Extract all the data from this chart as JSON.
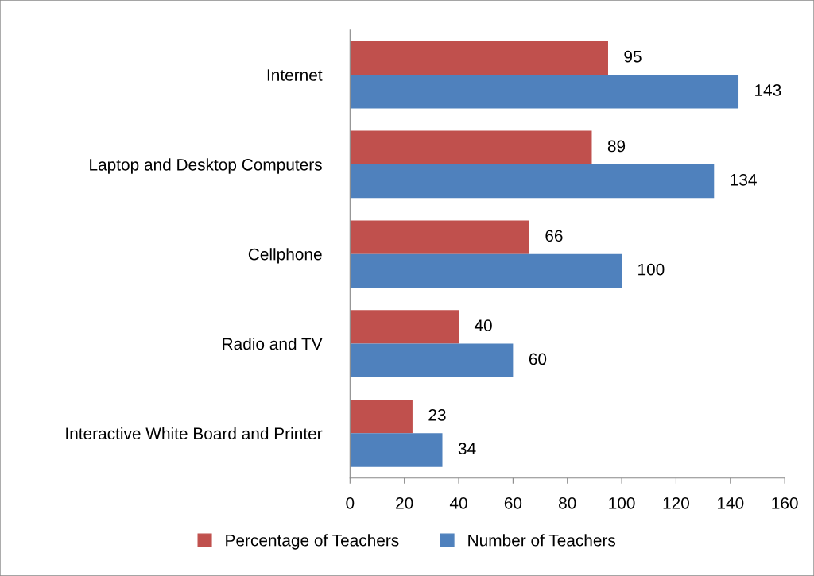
{
  "chart_data": {
    "type": "bar",
    "orientation": "horizontal",
    "categories": [
      "Internet",
      "Laptop and Desktop Computers",
      "Cellphone",
      "Radio and TV",
      "Interactive White Board and Printer"
    ],
    "series": [
      {
        "name": "Percentage of Teachers",
        "color": "#c0504d",
        "values": [
          95,
          89,
          66,
          40,
          23
        ]
      },
      {
        "name": "Number of Teachers",
        "color": "#4f81bd",
        "values": [
          143,
          134,
          100,
          60,
          34
        ]
      }
    ],
    "xlim": [
      0,
      160
    ],
    "xticks": [
      0,
      20,
      40,
      60,
      80,
      100,
      120,
      140,
      160
    ],
    "grid": false,
    "legend": "bottom",
    "data_labels": true
  }
}
